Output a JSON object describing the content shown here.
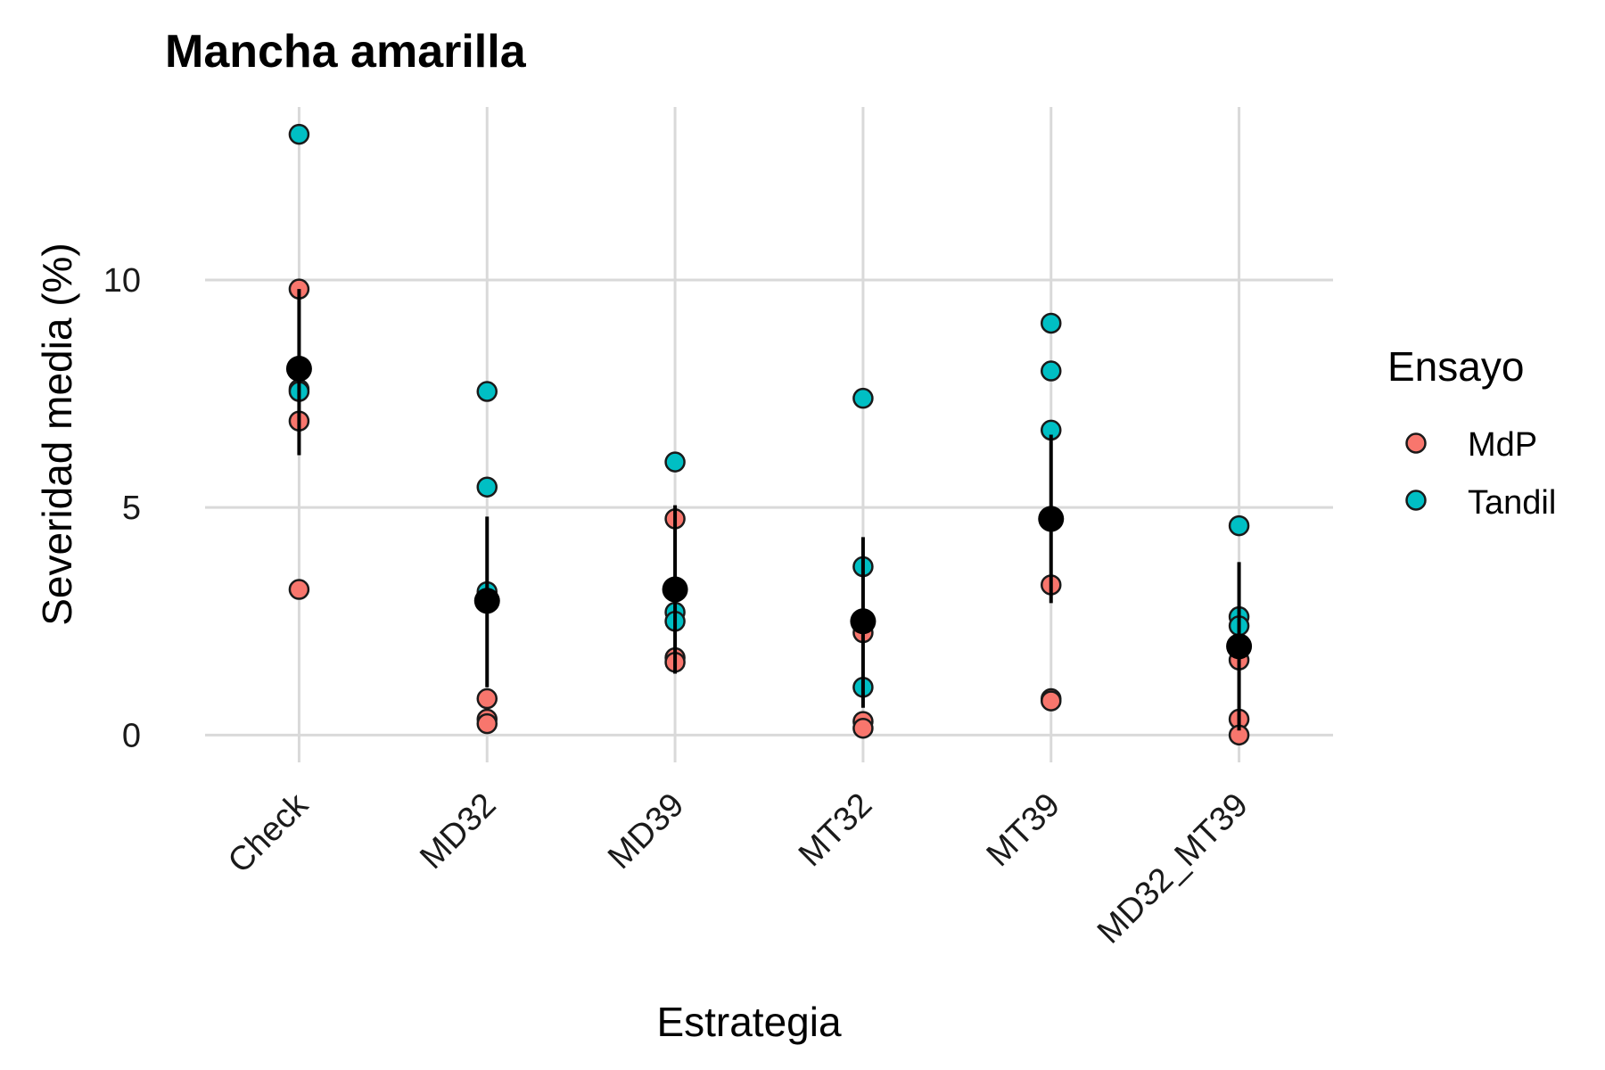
{
  "chart_data": {
    "type": "scatter",
    "title": "Mancha amarilla",
    "xlabel": "Estrategia",
    "ylabel": "Severidad media (%)",
    "categories": [
      "Check",
      "MD32",
      "MD39",
      "MT32",
      "MT39",
      "MD32_MT39"
    ],
    "y_ticks": [
      "0",
      "5",
      "10"
    ],
    "ylim": [
      -0.6,
      13.8
    ],
    "grid": true,
    "legend": {
      "title": "Ensayo",
      "position": "right",
      "entries": [
        {
          "name": "MdP",
          "color": "#F8766D"
        },
        {
          "name": "Tandil",
          "color": "#00BFC4"
        }
      ]
    },
    "series": [
      {
        "name": "MdP",
        "color": "#F8766D",
        "points": [
          {
            "x": "Check",
            "y": 9.8
          },
          {
            "x": "Check",
            "y": 6.9
          },
          {
            "x": "Check",
            "y": 3.2
          },
          {
            "x": "MD32",
            "y": 0.8
          },
          {
            "x": "MD32",
            "y": 0.35
          },
          {
            "x": "MD32",
            "y": 0.25
          },
          {
            "x": "MD39",
            "y": 4.75
          },
          {
            "x": "MD39",
            "y": 1.7
          },
          {
            "x": "MD39",
            "y": 1.6
          },
          {
            "x": "MT32",
            "y": 2.25
          },
          {
            "x": "MT32",
            "y": 0.3
          },
          {
            "x": "MT32",
            "y": 0.15
          },
          {
            "x": "MT39",
            "y": 3.3
          },
          {
            "x": "MT39",
            "y": 0.8
          },
          {
            "x": "MT39",
            "y": 0.75
          },
          {
            "x": "MD32_MT39",
            "y": 1.65
          },
          {
            "x": "MD32_MT39",
            "y": 0.35
          },
          {
            "x": "MD32_MT39",
            "y": 0.0
          }
        ]
      },
      {
        "name": "Tandil",
        "color": "#00BFC4",
        "points": [
          {
            "x": "Check",
            "y": 13.2
          },
          {
            "x": "Check",
            "y": 7.6
          },
          {
            "x": "Check",
            "y": 7.55
          },
          {
            "x": "MD32",
            "y": 7.55
          },
          {
            "x": "MD32",
            "y": 5.45
          },
          {
            "x": "MD32",
            "y": 3.15
          },
          {
            "x": "MD39",
            "y": 6.0
          },
          {
            "x": "MD39",
            "y": 2.7
          },
          {
            "x": "MD39",
            "y": 2.5
          },
          {
            "x": "MT32",
            "y": 7.4
          },
          {
            "x": "MT32",
            "y": 3.7
          },
          {
            "x": "MT32",
            "y": 1.05
          },
          {
            "x": "MT39",
            "y": 9.05
          },
          {
            "x": "MT39",
            "y": 8.0
          },
          {
            "x": "MT39",
            "y": 6.7
          },
          {
            "x": "MD32_MT39",
            "y": 4.6
          },
          {
            "x": "MD32_MT39",
            "y": 2.6
          },
          {
            "x": "MD32_MT39",
            "y": 2.4
          }
        ]
      }
    ],
    "summary": {
      "name": "mean",
      "color": "#000000",
      "points": [
        {
          "x": "Check",
          "mean": 8.05,
          "lower": 6.15,
          "upper": 9.8
        },
        {
          "x": "MD32",
          "mean": 2.95,
          "lower": 1.05,
          "upper": 4.8
        },
        {
          "x": "MD39",
          "mean": 3.2,
          "lower": 1.35,
          "upper": 5.05
        },
        {
          "x": "MT32",
          "mean": 2.5,
          "lower": 0.6,
          "upper": 4.35
        },
        {
          "x": "MT39",
          "mean": 4.75,
          "lower": 2.9,
          "upper": 6.6
        },
        {
          "x": "MD32_MT39",
          "mean": 1.95,
          "lower": 0.1,
          "upper": 3.8
        }
      ]
    }
  }
}
